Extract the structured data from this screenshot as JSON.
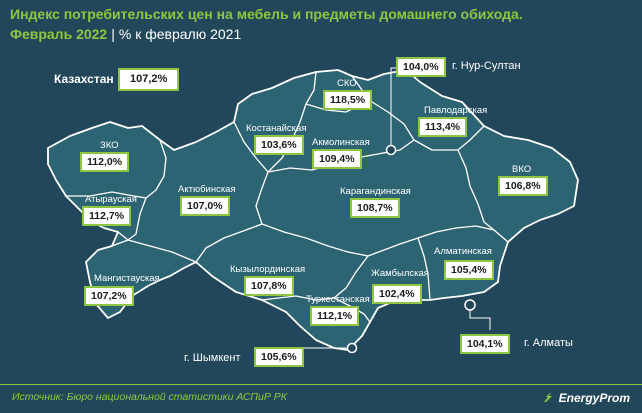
{
  "header": {
    "title": "Индекс потребительских цен на мебель и предметы домашнего обихода.",
    "period": "Февраль 2022",
    "separator": "|",
    "basis": "% к февралю 2021"
  },
  "country": {
    "label": "Казахстан",
    "value": "107,2%"
  },
  "regions": [
    {
      "id": "zko",
      "label": "ЗКО",
      "value": "112,0%"
    },
    {
      "id": "atyrau",
      "label": "Атырауская",
      "value": "112,7%"
    },
    {
      "id": "mangystau",
      "label": "Мангистауская",
      "value": "107,2%"
    },
    {
      "id": "aktobe",
      "label": "Актюбинская",
      "value": "107,0%"
    },
    {
      "id": "kostanay",
      "label": "Костанайская",
      "value": "103,6%"
    },
    {
      "id": "sko",
      "label": "СКО",
      "value": "118,5%"
    },
    {
      "id": "akmola",
      "label": "Акмолинская",
      "value": "109,4%"
    },
    {
      "id": "pavlodar",
      "label": "Павлодарская",
      "value": "113,4%"
    },
    {
      "id": "vko",
      "label": "ВКО",
      "value": "106,8%"
    },
    {
      "id": "karaganda",
      "label": "Карагандинская",
      "value": "108,7%"
    },
    {
      "id": "kyzylorda",
      "label": "Кызылординская",
      "value": "107,8%"
    },
    {
      "id": "turkestan",
      "label": "Туркестанская",
      "value": "112,1%"
    },
    {
      "id": "zhambyl",
      "label": "Жамбылская",
      "value": "102,4%"
    },
    {
      "id": "almaty_obl",
      "label": "Алматинская",
      "value": "105,4%"
    }
  ],
  "cities": [
    {
      "id": "nur_sultan",
      "label": "г. Нур-Султан",
      "value": "104,0%"
    },
    {
      "id": "almaty",
      "label": "г. Алматы",
      "value": "104,1%"
    },
    {
      "id": "shymkent",
      "label": "г. Шымкент",
      "value": "105,6%"
    }
  ],
  "footer": {
    "source": "Источник: Бюро национальной статистики АСПиР РК",
    "brand": "EnergyProm"
  },
  "colors": {
    "background": "#22475a",
    "map_fill": "#2d6474",
    "accent": "#8fc641",
    "border": "#ffffff"
  }
}
